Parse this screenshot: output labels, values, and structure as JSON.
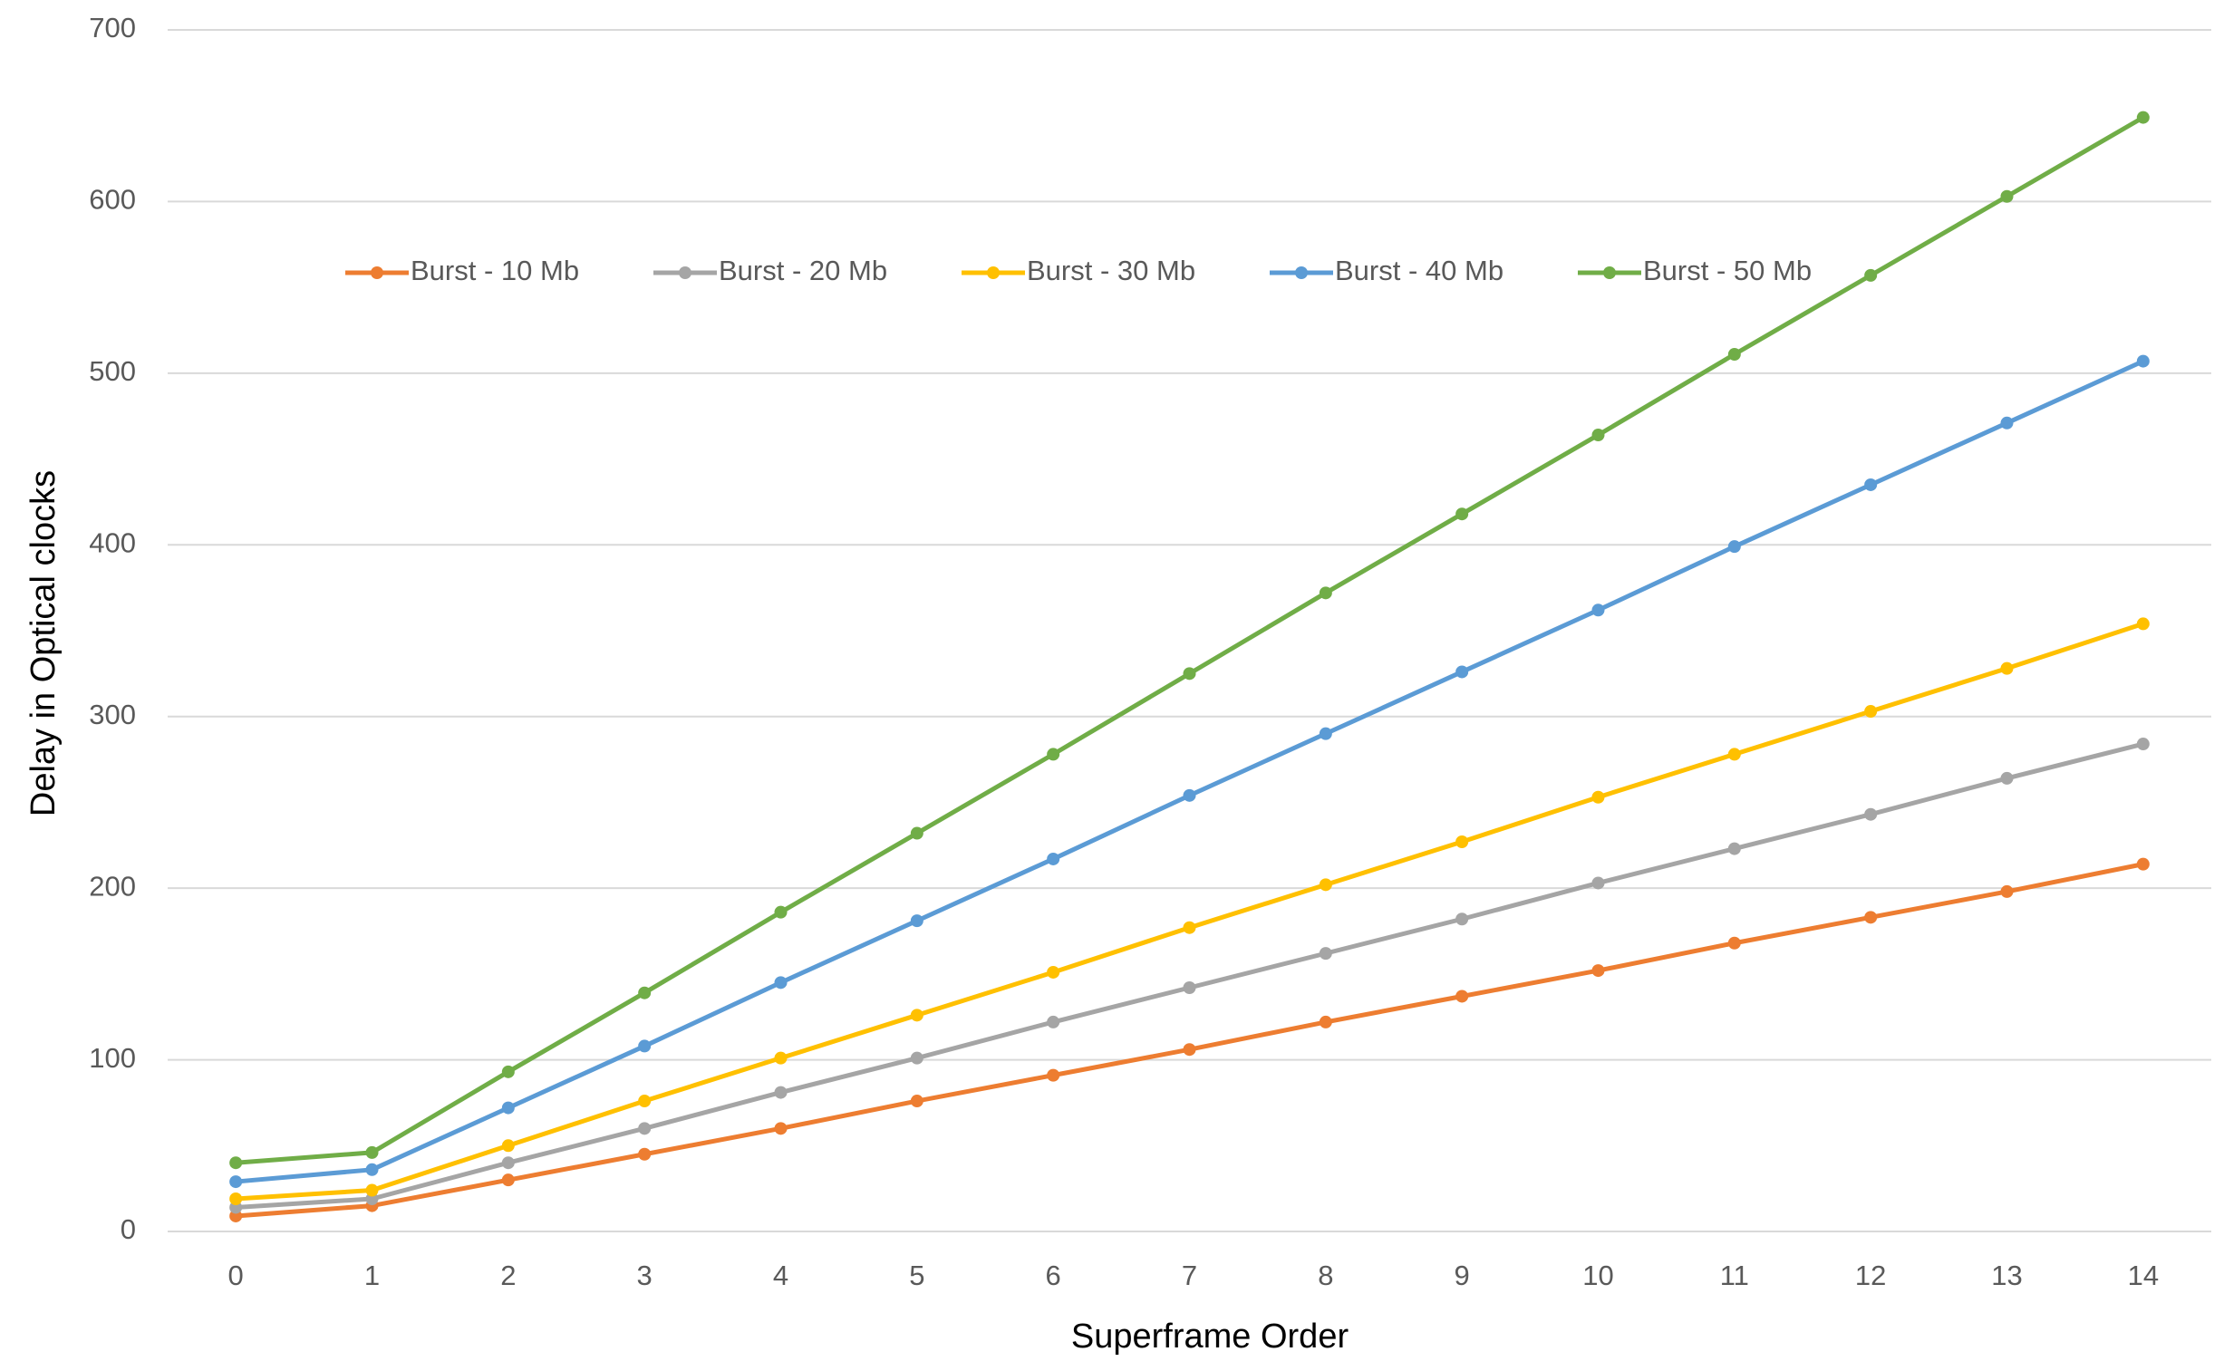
{
  "chart_data": {
    "type": "line",
    "x_label": "Superframe Order",
    "y_label": "Delay in Optical clocks",
    "categories": [
      "0",
      "1",
      "2",
      "3",
      "4",
      "5",
      "6",
      "7",
      "8",
      "9",
      "10",
      "11",
      "12",
      "13",
      "14"
    ],
    "series": [
      {
        "name": "Burst - 10 Mb",
        "color": "#ed7d31",
        "values": [
          9,
          15,
          30,
          45,
          60,
          76,
          91,
          106,
          122,
          137,
          152,
          168,
          183,
          198,
          214
        ]
      },
      {
        "name": "Burst - 20 Mb",
        "color": "#a5a5a5",
        "values": [
          14,
          19,
          40,
          60,
          81,
          101,
          122,
          142,
          162,
          182,
          203,
          223,
          243,
          264,
          284
        ]
      },
      {
        "name": "Burst - 30 Mb",
        "color": "#ffc000",
        "values": [
          19,
          24,
          50,
          76,
          101,
          126,
          151,
          177,
          202,
          227,
          253,
          278,
          303,
          328,
          354
        ]
      },
      {
        "name": "Burst - 40 Mb",
        "color": "#5b9bd5",
        "values": [
          29,
          36,
          72,
          108,
          145,
          181,
          217,
          254,
          290,
          326,
          362,
          399,
          435,
          471,
          507
        ]
      },
      {
        "name": "Burst - 50 Mb",
        "color": "#70ad47",
        "values": [
          40,
          46,
          93,
          139,
          186,
          232,
          278,
          325,
          372,
          418,
          464,
          511,
          557,
          603,
          649
        ]
      }
    ],
    "ylim": [
      0,
      700
    ],
    "yticks": [
      0,
      100,
      200,
      300,
      400,
      500,
      600,
      700
    ],
    "grid": true
  }
}
